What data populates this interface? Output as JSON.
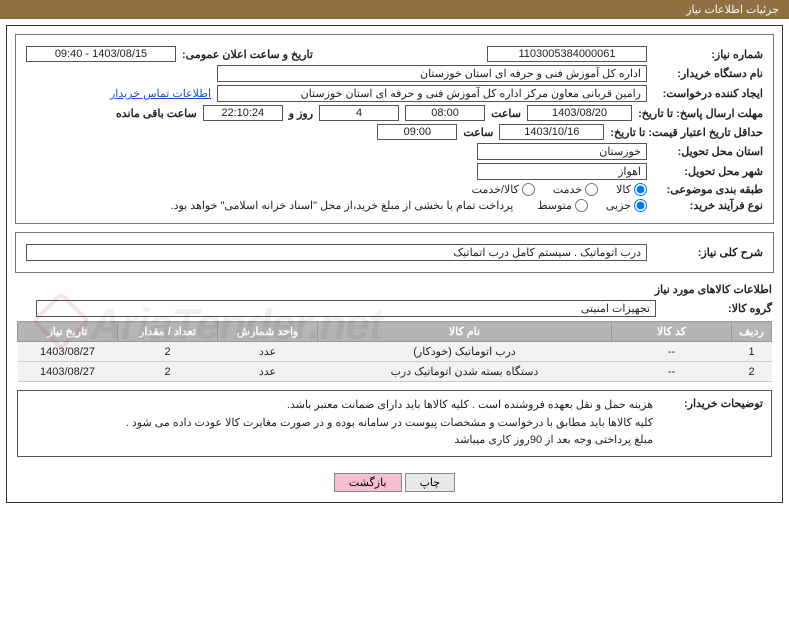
{
  "header": {
    "title": "جزئیات اطلاعات نیاز"
  },
  "top": {
    "need_number_label": "شماره نیاز:",
    "need_number": "1103005384000061",
    "announce_datetime_label": "تاریخ و ساعت اعلان عمومی:",
    "announce_datetime": "1403/08/15 - 09:40",
    "buyer_label": "نام دستگاه خریدار:",
    "buyer": "اداره کل آموزش فنی و حرفه ای استان خوزستان",
    "requester_label": "ایجاد کننده درخواست:",
    "requester": "رامین قربانی معاون مرکز  اداره کل آموزش فنی و حرفه ای استان خوزستان",
    "contact_link": "اطلاعات تماس خریدار",
    "response_deadline_label": "مهلت ارسال پاسخ: تا تاریخ:",
    "response_deadline_date": "1403/08/20",
    "time_label": "ساعت",
    "response_deadline_time": "08:00",
    "days_label_prefix": "",
    "remaining_days": "4",
    "days_and_label": "روز و",
    "remaining_time": "22:10:24",
    "remaining_suffix": "ساعت باقی مانده",
    "price_validity_label": "حداقل تاریخ اعتبار قیمت: تا تاریخ:",
    "price_validity_date": "1403/10/16",
    "price_validity_time": "09:00",
    "delivery_province_label": "استان محل تحویل:",
    "delivery_province": "خوزستان",
    "delivery_city_label": "شهر محل تحویل:",
    "delivery_city": "اهواز",
    "category_label": "طبقه بندی موضوعی:",
    "cat_options": {
      "goods": "کالا",
      "service": "خدمت",
      "both": "کالا/خدمت"
    },
    "purchase_type_label": "نوع فرآیند خرید:",
    "pt_options": {
      "partial": "جزیی",
      "medium": "متوسط"
    },
    "purchase_note": "پرداخت تمام یا بخشی از مبلغ خرید،از محل \"اسناد خزانه اسلامی\" خواهد بود."
  },
  "need": {
    "title_label": "شرح کلی نیاز:",
    "title": "درب اتوماتیک . سیستم کامل درب اتماتیک"
  },
  "items": {
    "section_title": "اطلاعات کالاهای مورد نیاز",
    "group_label": "گروه کالا:",
    "group": "تجهیزات امنیتی",
    "columns": [
      "ردیف",
      "کد کالا",
      "نام کالا",
      "واحد شمارش",
      "تعداد / مقدار",
      "تاریخ نیاز"
    ],
    "rows": [
      [
        "1",
        "--",
        "درب اتوماتیک (خودکار)",
        "عدد",
        "2",
        "1403/08/27"
      ],
      [
        "2",
        "--",
        "دستگاه بسته شدن اتوماتیک درب",
        "عدد",
        "2",
        "1403/08/27"
      ]
    ]
  },
  "note": {
    "label": "توضیحات خریدار:",
    "lines": [
      "هزینه حمل و نقل بعهده فروشنده است . کلیه کالاها باید دارای ضمانت معتبر باشد.",
      "کلیه کالاها باید مطابق با درخواست و مشخصات پیوست در سامانه بوده و در صورت مغایرت کالا عودت داده می شود .",
      "مبلغ پرداختی وجه بعد از 90روز کاری میباشد"
    ]
  },
  "buttons": {
    "print": "چاپ",
    "back": "بازگشت"
  },
  "watermark": "AriaTender.net"
}
